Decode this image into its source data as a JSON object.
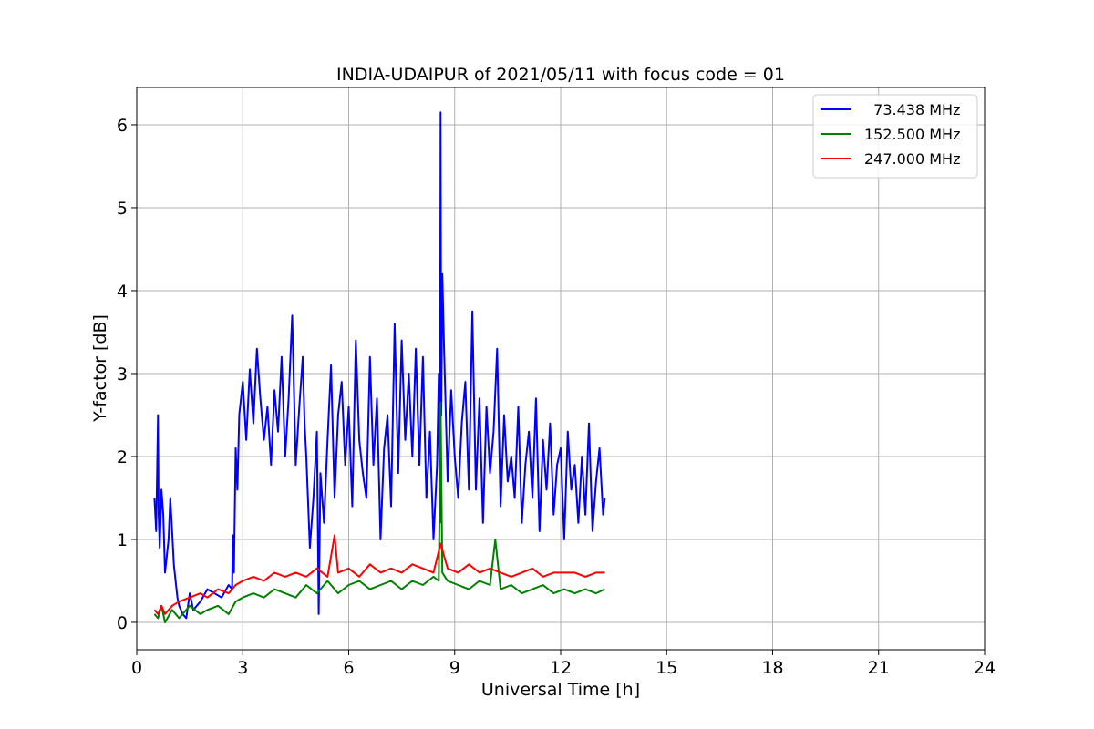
{
  "chart_data": {
    "type": "line",
    "title": "INDIA-UDAIPUR of 2021/05/11 with focus code = 01",
    "xlabel": "Universal Time [h]",
    "ylabel": "Y-factor [dB]",
    "xlim": [
      0,
      24
    ],
    "ylim": [
      -0.33,
      6.45
    ],
    "xticks": [
      0,
      3,
      6,
      9,
      12,
      15,
      18,
      21,
      24
    ],
    "yticks": [
      0,
      1,
      2,
      3,
      4,
      5,
      6
    ],
    "grid": true,
    "legend_position": "top-right",
    "series": [
      {
        "name": "  73.438 MHz",
        "color": "#0000ff",
        "x": [
          0.5,
          0.55,
          0.6,
          0.62,
          0.65,
          0.7,
          0.75,
          0.8,
          0.9,
          0.95,
          1.0,
          1.05,
          1.1,
          1.15,
          1.2,
          1.3,
          1.4,
          1.5,
          1.6,
          1.8,
          2.0,
          2.2,
          2.4,
          2.6,
          2.7,
          2.72,
          2.75,
          2.8,
          2.85,
          2.9,
          3.0,
          3.1,
          3.2,
          3.3,
          3.4,
          3.5,
          3.6,
          3.7,
          3.8,
          3.9,
          4.0,
          4.1,
          4.2,
          4.3,
          4.4,
          4.5,
          4.6,
          4.7,
          4.75,
          4.8,
          4.9,
          5.0,
          5.1,
          5.15,
          5.2,
          5.3,
          5.4,
          5.5,
          5.6,
          5.7,
          5.8,
          5.9,
          6.0,
          6.1,
          6.2,
          6.3,
          6.4,
          6.5,
          6.6,
          6.7,
          6.8,
          6.9,
          7.0,
          7.1,
          7.2,
          7.3,
          7.4,
          7.5,
          7.6,
          7.7,
          7.8,
          7.9,
          8.0,
          8.1,
          8.2,
          8.3,
          8.4,
          8.5,
          8.55,
          8.58,
          8.6,
          8.62,
          8.65,
          8.7,
          8.8,
          8.9,
          9.0,
          9.1,
          9.2,
          9.3,
          9.4,
          9.5,
          9.6,
          9.7,
          9.8,
          9.9,
          10.0,
          10.1,
          10.2,
          10.3,
          10.4,
          10.5,
          10.6,
          10.7,
          10.8,
          10.9,
          11.0,
          11.1,
          11.2,
          11.3,
          11.4,
          11.5,
          11.6,
          11.7,
          11.8,
          11.9,
          12.0,
          12.1,
          12.2,
          12.3,
          12.4,
          12.5,
          12.6,
          12.7,
          12.8,
          12.9,
          13.0,
          13.1,
          13.2,
          13.25
        ],
        "y": [
          1.5,
          1.1,
          2.5,
          1.3,
          0.9,
          1.6,
          1.3,
          0.6,
          1.0,
          1.5,
          1.1,
          0.7,
          0.5,
          0.3,
          0.2,
          0.1,
          0.05,
          0.35,
          0.15,
          0.25,
          0.4,
          0.35,
          0.3,
          0.45,
          0.4,
          1.05,
          0.6,
          2.1,
          1.6,
          2.5,
          2.9,
          2.2,
          3.05,
          2.4,
          3.3,
          2.7,
          2.2,
          2.6,
          1.9,
          2.8,
          2.3,
          3.2,
          2.0,
          2.7,
          3.7,
          1.9,
          2.6,
          3.2,
          2.4,
          2.0,
          0.9,
          1.5,
          2.3,
          0.1,
          1.8,
          1.2,
          2.2,
          3.1,
          1.5,
          2.5,
          2.9,
          1.9,
          2.6,
          1.4,
          3.4,
          2.2,
          1.8,
          1.5,
          3.2,
          1.9,
          2.7,
          1.0,
          2.1,
          2.5,
          1.4,
          3.6,
          1.8,
          3.4,
          2.2,
          3.0,
          2.0,
          3.3,
          1.9,
          3.2,
          1.5,
          2.3,
          1.0,
          1.9,
          3.0,
          1.2,
          6.15,
          2.5,
          4.2,
          3.3,
          1.7,
          2.8,
          2.0,
          1.5,
          2.4,
          2.9,
          1.6,
          3.75,
          1.6,
          2.7,
          1.2,
          2.6,
          1.8,
          2.3,
          3.3,
          1.4,
          2.5,
          1.7,
          2.0,
          1.5,
          2.6,
          1.2,
          1.9,
          2.3,
          1.5,
          2.7,
          1.1,
          2.2,
          1.6,
          2.4,
          1.3,
          1.9,
          2.1,
          1.0,
          2.3,
          1.6,
          1.9,
          1.2,
          2.0,
          1.3,
          2.4,
          1.1,
          1.7,
          2.1,
          1.3,
          1.5
        ],
        "line_width": 2
      },
      {
        "name": "152.500 MHz",
        "color": "#008000",
        "x": [
          0.5,
          0.6,
          0.7,
          0.8,
          1.0,
          1.2,
          1.5,
          1.8,
          2.0,
          2.3,
          2.6,
          2.8,
          3.0,
          3.3,
          3.6,
          3.9,
          4.2,
          4.5,
          4.8,
          5.1,
          5.4,
          5.7,
          6.0,
          6.3,
          6.6,
          6.9,
          7.2,
          7.5,
          7.8,
          8.1,
          8.4,
          8.55,
          8.6,
          8.65,
          8.8,
          9.1,
          9.4,
          9.7,
          10.0,
          10.15,
          10.3,
          10.6,
          10.9,
          11.2,
          11.5,
          11.8,
          12.1,
          12.4,
          12.7,
          13.0,
          13.25
        ],
        "y": [
          0.1,
          0.05,
          0.2,
          0.0,
          0.15,
          0.05,
          0.2,
          0.1,
          0.15,
          0.2,
          0.1,
          0.25,
          0.3,
          0.35,
          0.3,
          0.4,
          0.35,
          0.3,
          0.45,
          0.35,
          0.5,
          0.35,
          0.45,
          0.5,
          0.4,
          0.45,
          0.5,
          0.4,
          0.5,
          0.45,
          0.55,
          0.5,
          2.65,
          0.6,
          0.5,
          0.45,
          0.4,
          0.5,
          0.45,
          1.0,
          0.4,
          0.45,
          0.35,
          0.4,
          0.45,
          0.35,
          0.4,
          0.35,
          0.4,
          0.35,
          0.4
        ],
        "line_width": 2
      },
      {
        "name": "247.000 MHz",
        "color": "#ff0000",
        "x": [
          0.5,
          0.6,
          0.7,
          0.8,
          1.0,
          1.2,
          1.5,
          1.8,
          2.0,
          2.3,
          2.6,
          2.8,
          3.0,
          3.3,
          3.6,
          3.9,
          4.2,
          4.5,
          4.8,
          5.1,
          5.4,
          5.6,
          5.7,
          6.0,
          6.3,
          6.6,
          6.9,
          7.2,
          7.5,
          7.8,
          8.1,
          8.4,
          8.6,
          8.8,
          9.1,
          9.4,
          9.7,
          10.0,
          10.3,
          10.6,
          10.9,
          11.2,
          11.5,
          11.8,
          12.1,
          12.4,
          12.7,
          13.0,
          13.25
        ],
        "y": [
          0.15,
          0.1,
          0.2,
          0.1,
          0.2,
          0.25,
          0.3,
          0.35,
          0.3,
          0.4,
          0.35,
          0.45,
          0.5,
          0.55,
          0.5,
          0.6,
          0.55,
          0.6,
          0.55,
          0.65,
          0.55,
          1.05,
          0.6,
          0.65,
          0.55,
          0.7,
          0.6,
          0.65,
          0.6,
          0.7,
          0.65,
          0.6,
          0.95,
          0.65,
          0.6,
          0.7,
          0.6,
          0.65,
          0.6,
          0.55,
          0.6,
          0.65,
          0.55,
          0.6,
          0.6,
          0.6,
          0.55,
          0.6,
          0.6
        ],
        "line_width": 2
      }
    ]
  }
}
